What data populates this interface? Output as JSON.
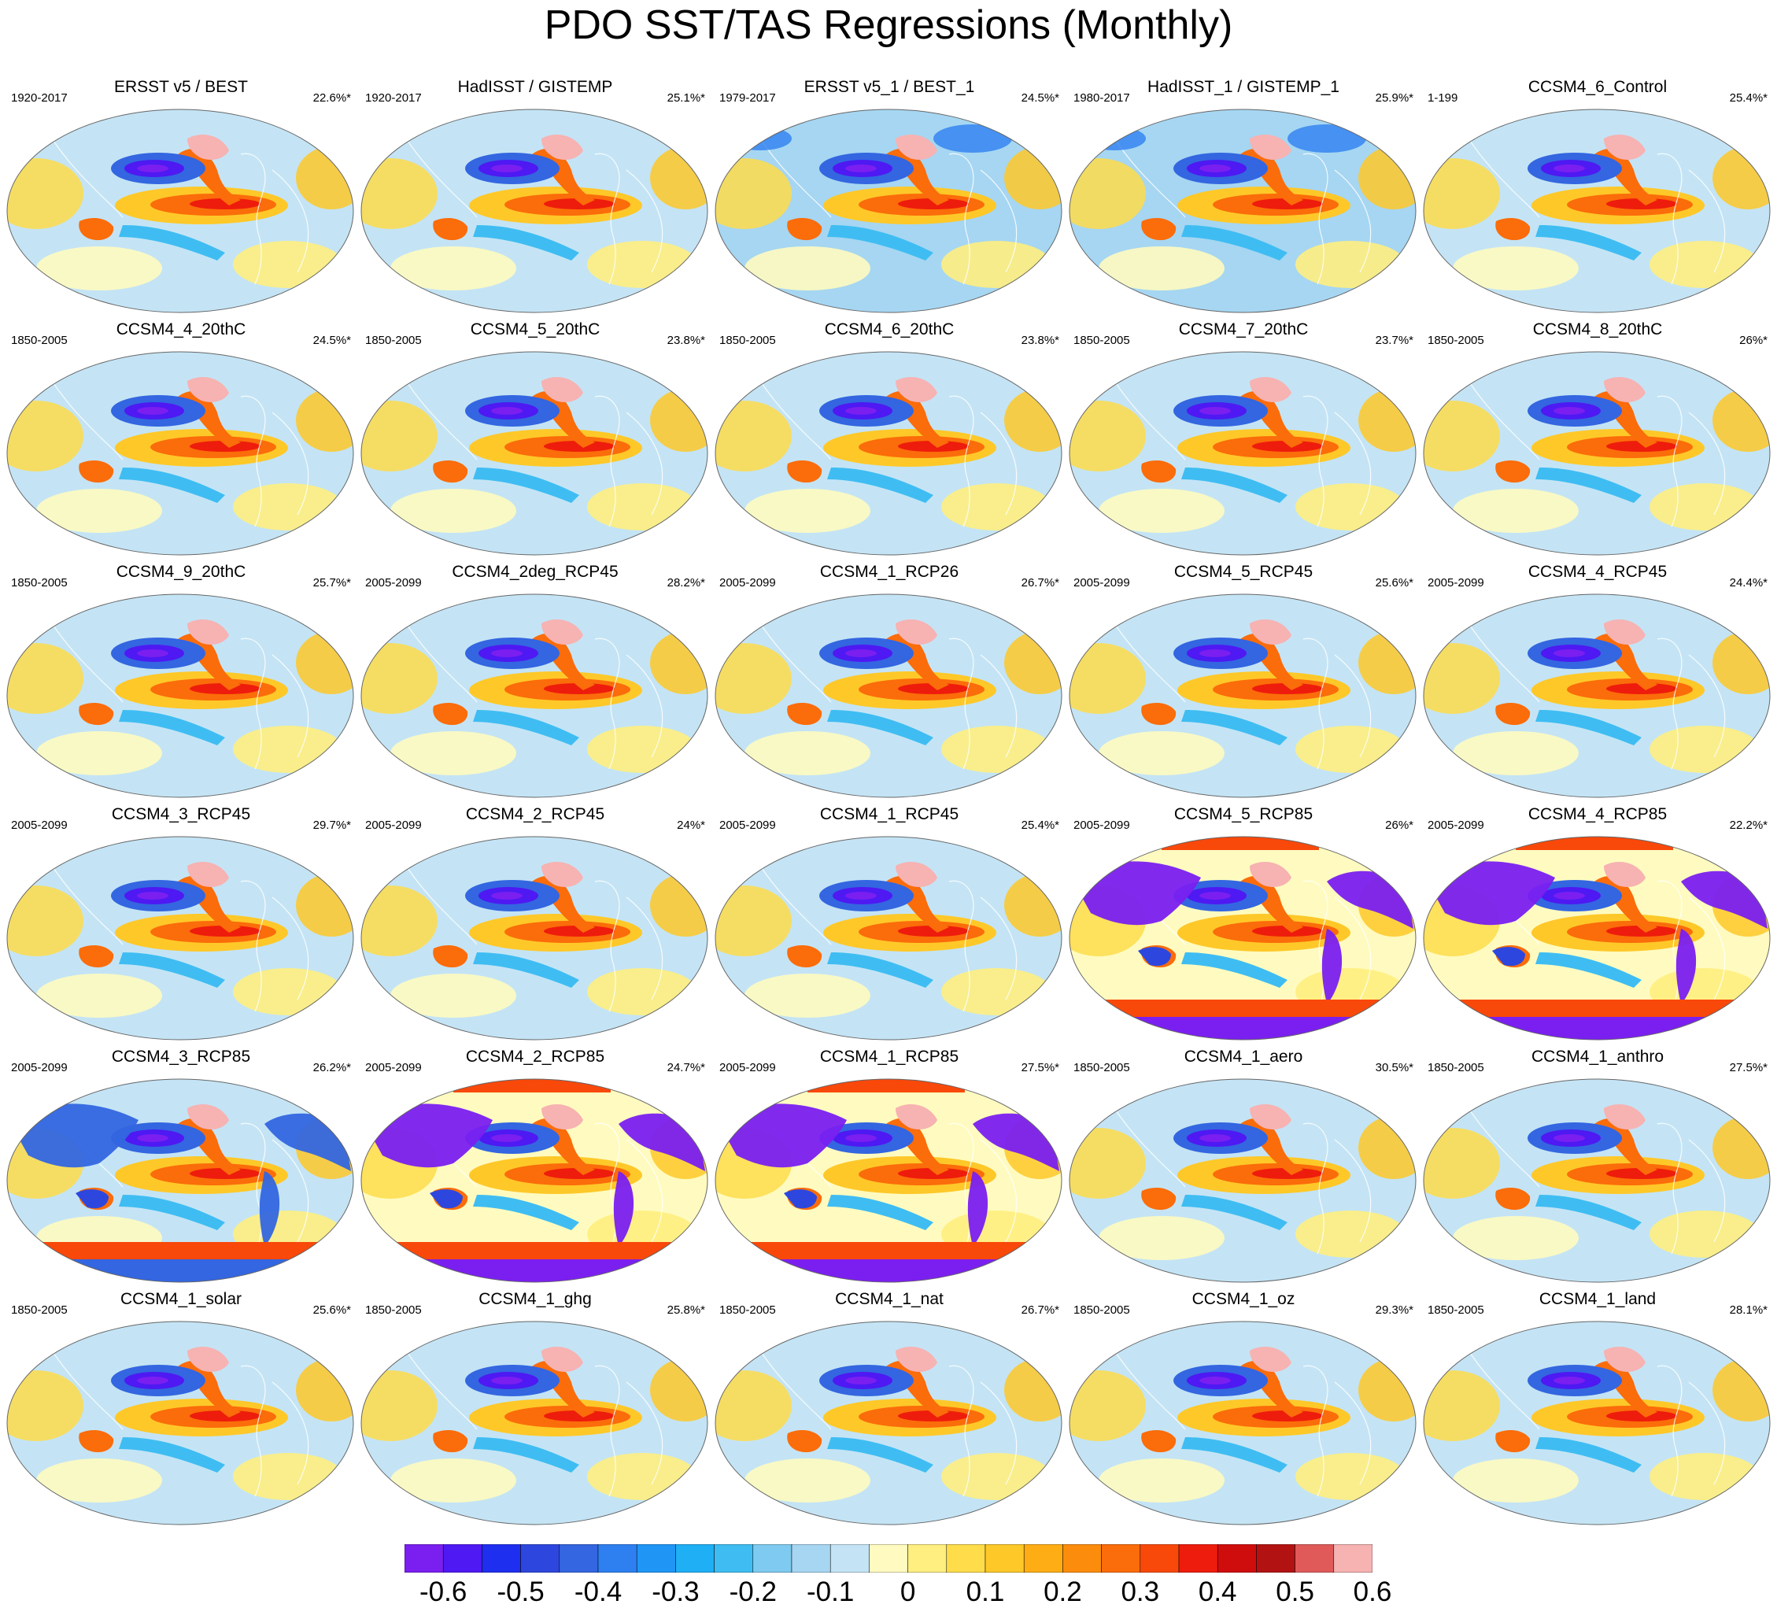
{
  "title": "PDO SST/TAS Regressions (Monthly)",
  "panels": [
    {
      "name": "ERSST v5 / BEST",
      "period": "1920-2017",
      "pct": "22.6%*",
      "style": "obs1"
    },
    {
      "name": "HadISST / GISTEMP",
      "period": "1920-2017",
      "pct": "25.1%*",
      "style": "obs2"
    },
    {
      "name": "ERSST v5_1 / BEST_1",
      "period": "1979-2017",
      "pct": "24.5%*",
      "style": "obs3"
    },
    {
      "name": "HadISST_1 / GISTEMP_1",
      "period": "1980-2017",
      "pct": "25.9%*",
      "style": "obs3"
    },
    {
      "name": "CCSM4_6_Control",
      "period": "1-199",
      "pct": "25.4%*",
      "style": "model"
    },
    {
      "name": "CCSM4_4_20thC",
      "period": "1850-2005",
      "pct": "24.5%*",
      "style": "model"
    },
    {
      "name": "CCSM4_5_20thC",
      "period": "1850-2005",
      "pct": "23.8%*",
      "style": "model"
    },
    {
      "name": "CCSM4_6_20thC",
      "period": "1850-2005",
      "pct": "23.8%*",
      "style": "model"
    },
    {
      "name": "CCSM4_7_20thC",
      "period": "1850-2005",
      "pct": "23.7%*",
      "style": "model"
    },
    {
      "name": "CCSM4_8_20thC",
      "period": "1850-2005",
      "pct": "26%*",
      "style": "model"
    },
    {
      "name": "CCSM4_9_20thC",
      "period": "1850-2005",
      "pct": "25.7%*",
      "style": "model"
    },
    {
      "name": "CCSM4_2deg_RCP45",
      "period": "2005-2099",
      "pct": "28.2%*",
      "style": "model"
    },
    {
      "name": "CCSM4_1_RCP26",
      "period": "2005-2099",
      "pct": "26.7%*",
      "style": "model"
    },
    {
      "name": "CCSM4_5_RCP45",
      "period": "2005-2099",
      "pct": "25.6%*",
      "style": "model"
    },
    {
      "name": "CCSM4_4_RCP45",
      "period": "2005-2099",
      "pct": "24.4%*",
      "style": "model"
    },
    {
      "name": "CCSM4_3_RCP45",
      "period": "2005-2099",
      "pct": "29.7%*",
      "style": "model"
    },
    {
      "name": "CCSM4_2_RCP45",
      "period": "2005-2099",
      "pct": "24%*",
      "style": "model"
    },
    {
      "name": "CCSM4_1_RCP45",
      "period": "2005-2099",
      "pct": "25.4%*",
      "style": "model"
    },
    {
      "name": "CCSM4_5_RCP85",
      "period": "2005-2099",
      "pct": "26%*",
      "style": "rcp85"
    },
    {
      "name": "CCSM4_4_RCP85",
      "period": "2005-2099",
      "pct": "22.2%*",
      "style": "rcp85"
    },
    {
      "name": "CCSM4_3_RCP85",
      "period": "2005-2099",
      "pct": "26.2%*",
      "style": "rcp85b"
    },
    {
      "name": "CCSM4_2_RCP85",
      "period": "2005-2099",
      "pct": "24.7%*",
      "style": "rcp85"
    },
    {
      "name": "CCSM4_1_RCP85",
      "period": "2005-2099",
      "pct": "27.5%*",
      "style": "rcp85"
    },
    {
      "name": "CCSM4_1_aero",
      "period": "1850-2005",
      "pct": "30.5%*",
      "style": "model"
    },
    {
      "name": "CCSM4_1_anthro",
      "period": "1850-2005",
      "pct": "27.5%*",
      "style": "model"
    },
    {
      "name": "CCSM4_1_solar",
      "period": "1850-2005",
      "pct": "25.6%*",
      "style": "model"
    },
    {
      "name": "CCSM4_1_ghg",
      "period": "1850-2005",
      "pct": "25.8%*",
      "style": "model"
    },
    {
      "name": "CCSM4_1_nat",
      "period": "1850-2005",
      "pct": "26.7%*",
      "style": "model"
    },
    {
      "name": "CCSM4_1_oz",
      "period": "1850-2005",
      "pct": "29.3%*",
      "style": "model"
    },
    {
      "name": "CCSM4_1_land",
      "period": "1850-2005",
      "pct": "28.1%*",
      "style": "model"
    }
  ],
  "colorbar": {
    "colors": [
      "#7a1ff0",
      "#4e19f2",
      "#1f2ff0",
      "#2d47de",
      "#3366e0",
      "#2e7ff0",
      "#1f96f5",
      "#1faff5",
      "#3fbdf2",
      "#7fcaf0",
      "#a6d6f2",
      "#c4e4f5",
      "#fffbc0",
      "#ffee80",
      "#fedc4a",
      "#fec829",
      "#feae14",
      "#fc8c0c",
      "#fb6c0a",
      "#f8480a",
      "#ee1c0c",
      "#cf0d0d",
      "#b31212",
      "#e05a5a",
      "#f7b2b2"
    ],
    "labels": [
      "-0.6",
      "-0.5",
      "-0.4",
      "-0.3",
      "-0.2",
      "-0.1",
      "0",
      "0.1",
      "0.2",
      "0.3",
      "0.4",
      "0.5",
      "0.6"
    ]
  }
}
